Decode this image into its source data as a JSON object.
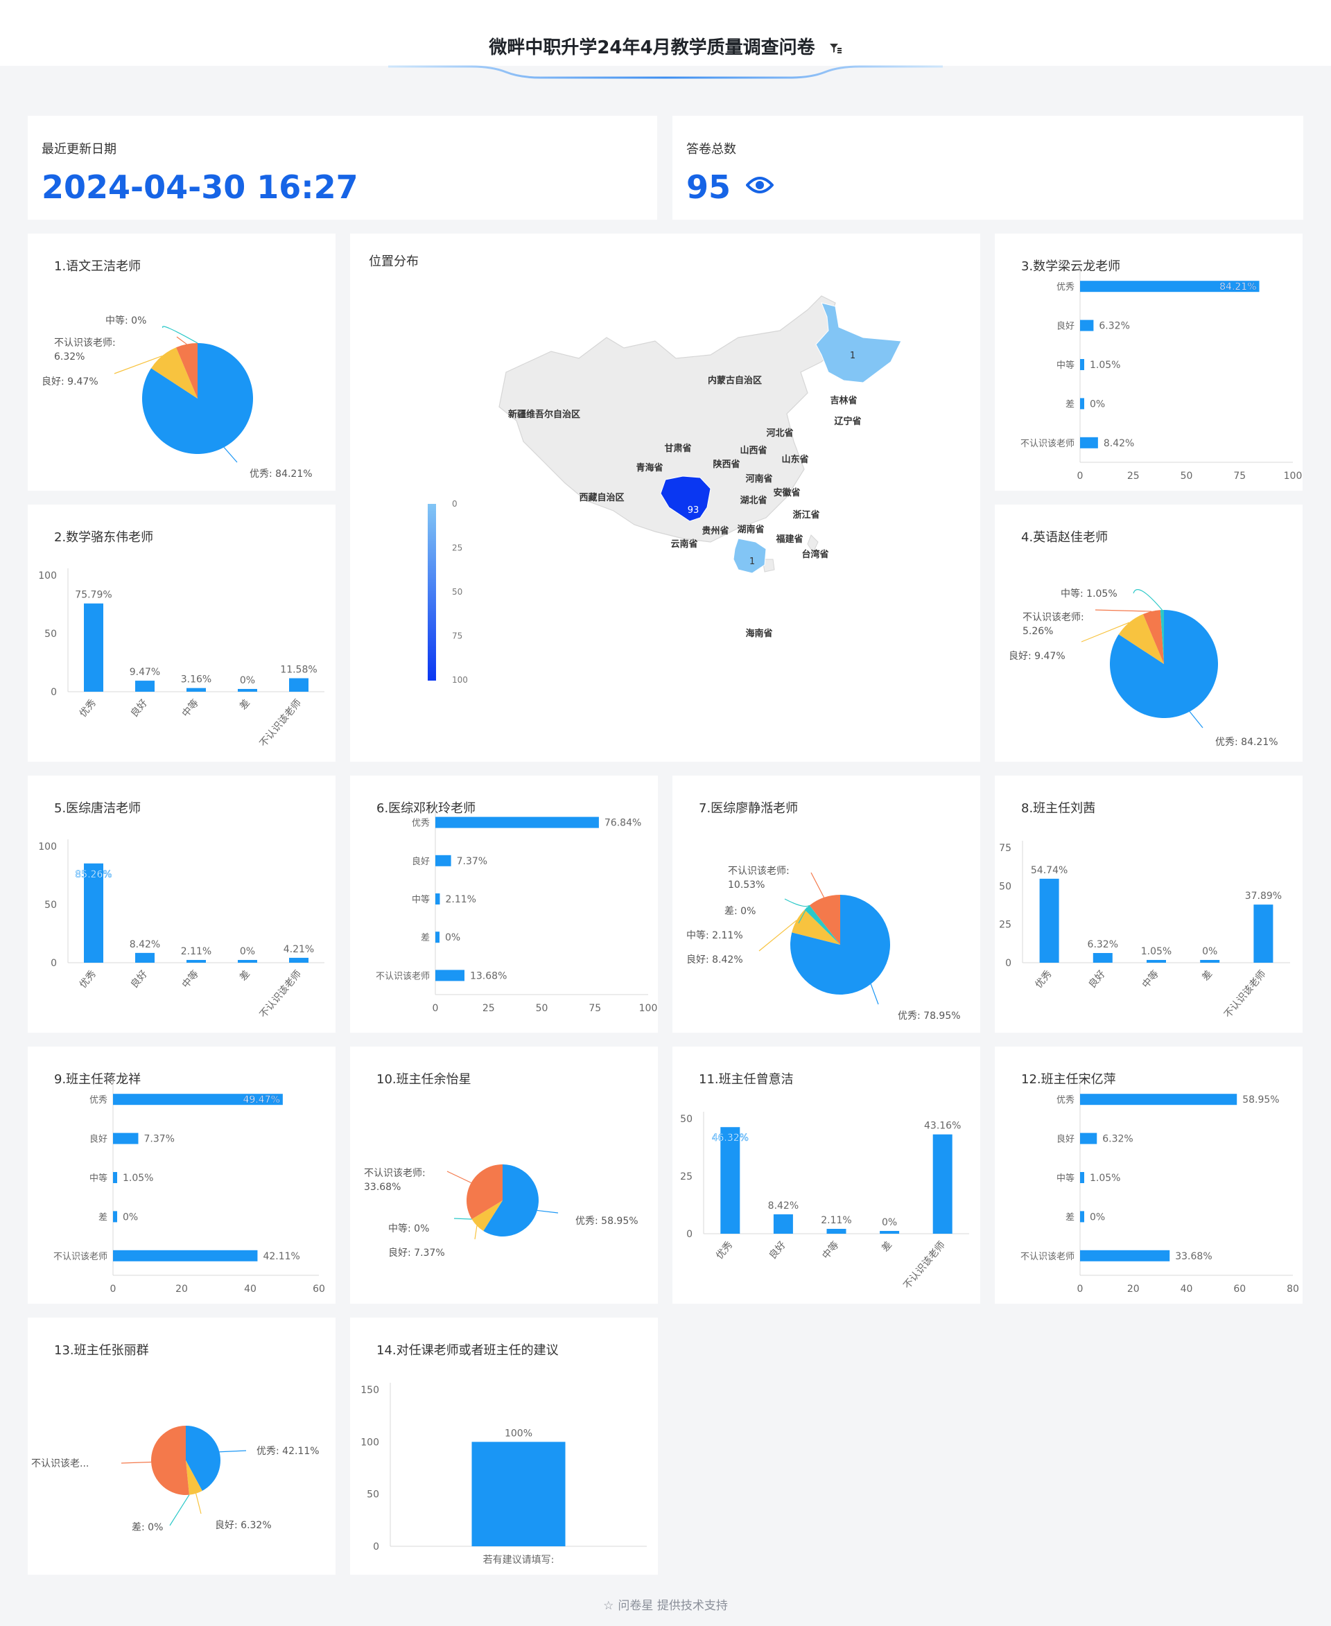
{
  "header": {
    "title": "微畔中职升学24年4月教学质量调查问卷",
    "filter_icon": "filter-icon"
  },
  "kpi": {
    "update_label": "最近更新日期",
    "update_value": "2024-04-30 16:27",
    "count_label": "答卷总数",
    "count_value": "95",
    "count_icon": "eye-icon"
  },
  "footer": {
    "text": "问卷星 提供技术支持",
    "icon": "star-icon"
  },
  "map": {
    "title": "位置分布",
    "legend_ticks": [
      "0",
      "25",
      "50",
      "75",
      "100"
    ],
    "provinces": [
      "内蒙古自治区",
      "新疆维吾尔自治区",
      "吉林省",
      "辽宁省",
      "河北省",
      "甘肃省",
      "山西省",
      "山东省",
      "青海省",
      "陕西省",
      "河南省",
      "西藏自治区",
      "安徽省",
      "湖北省",
      "浙江省",
      "贵州省",
      "湖南省",
      "云南省",
      "福建省",
      "台湾省",
      "海南省"
    ],
    "values": [
      {
        "region": "四川省",
        "value": 93
      },
      {
        "region": "黑龙江省",
        "value": 1
      },
      {
        "region": "广东省",
        "value": 1
      }
    ]
  },
  "colors": {
    "blue": "#1a96f5",
    "orange": "#f4794b",
    "yellow": "#f8c33f",
    "teal": "#2bc8c8",
    "map_high": "#0a37f2",
    "map_low": "#82c5f5",
    "map_base": "#ececec"
  },
  "chart_data": [
    {
      "id": "c1",
      "title": "1.语文王洁老师",
      "type": "pie",
      "slices": [
        {
          "label": "优秀: 84.21%",
          "value": 84.21,
          "color": "#1a96f5"
        },
        {
          "label": "良好: 9.47%",
          "value": 9.47,
          "color": "#f8c33f"
        },
        {
          "label": "不认识该老师: 6.32%",
          "value": 6.32,
          "color": "#f4794b"
        },
        {
          "label": "中等: 0%",
          "value": 0,
          "color": "#2bc8c8"
        }
      ]
    },
    {
      "id": "c2",
      "title": "2.数学骆东伟老师",
      "type": "bar",
      "categories": [
        "优秀",
        "良好",
        "中等",
        "差",
        "不认识该老师"
      ],
      "values": [
        75.79,
        9.47,
        3.16,
        0,
        11.58
      ],
      "labels": [
        "75.79%",
        "9.47%",
        "3.16%",
        "0%",
        "11.58%"
      ],
      "y_ticks": [
        "100",
        "50",
        "0"
      ],
      "ylim": [
        0,
        100
      ]
    },
    {
      "id": "c3",
      "title": "3.数学梁云龙老师",
      "type": "hbar",
      "categories": [
        "优秀",
        "良好",
        "中等",
        "差",
        "不认识该老师"
      ],
      "values": [
        84.21,
        6.32,
        1.05,
        0,
        8.42
      ],
      "labels": [
        "84.21%",
        "6.32%",
        "1.05%",
        "0%",
        "8.42%"
      ],
      "x_ticks": [
        "0",
        "25",
        "50",
        "75",
        "100"
      ],
      "xlim": [
        0,
        100
      ]
    },
    {
      "id": "c4",
      "title": "4.英语赵佳老师",
      "type": "pie",
      "slices": [
        {
          "label": "优秀: 84.21%",
          "value": 84.21,
          "color": "#1a96f5"
        },
        {
          "label": "良好: 9.47%",
          "value": 9.47,
          "color": "#f8c33f"
        },
        {
          "label": "不认识该老师: 5.26%",
          "value": 5.26,
          "color": "#f4794b"
        },
        {
          "label": "中等: 1.05%",
          "value": 1.05,
          "color": "#2bc8c8"
        }
      ]
    },
    {
      "id": "c5",
      "title": "5.医综唐洁老师",
      "type": "bar",
      "categories": [
        "优秀",
        "良好",
        "中等",
        "差",
        "不认识该老师"
      ],
      "values": [
        85.26,
        8.42,
        2.11,
        0,
        4.21
      ],
      "labels": [
        "85.26%",
        "8.42%",
        "2.11%",
        "0%",
        "4.21%"
      ],
      "y_ticks": [
        "100",
        "50",
        "0"
      ],
      "ylim": [
        0,
        100
      ]
    },
    {
      "id": "c6",
      "title": "6.医综邓秋玲老师",
      "type": "hbar",
      "categories": [
        "优秀",
        "良好",
        "中等",
        "差",
        "不认识该老师"
      ],
      "values": [
        76.84,
        7.37,
        2.11,
        0,
        13.68
      ],
      "labels": [
        "76.84%",
        "7.37%",
        "2.11%",
        "0%",
        "13.68%"
      ],
      "x_ticks": [
        "0",
        "25",
        "50",
        "75",
        "100"
      ],
      "xlim": [
        0,
        100
      ]
    },
    {
      "id": "c7",
      "title": "7.医综廖静湉老师",
      "type": "pie",
      "slices": [
        {
          "label": "优秀: 78.95%",
          "value": 78.95,
          "color": "#1a96f5"
        },
        {
          "label": "良好: 8.42%",
          "value": 8.42,
          "color": "#f8c33f"
        },
        {
          "label": "中等: 2.11%",
          "value": 2.11,
          "color": "#2bc8c8"
        },
        {
          "label": "差: 0%",
          "value": 0,
          "color": "#2bc8c8"
        },
        {
          "label": "不认识该老师: 10.53%",
          "value": 10.53,
          "color": "#f4794b"
        }
      ]
    },
    {
      "id": "c8",
      "title": "8.班主任刘茜",
      "type": "bar",
      "categories": [
        "优秀",
        "良好",
        "中等",
        "差",
        "不认识该老师"
      ],
      "values": [
        54.74,
        6.32,
        1.05,
        0,
        37.89
      ],
      "labels": [
        "54.74%",
        "6.32%",
        "1.05%",
        "0%",
        "37.89%"
      ],
      "y_ticks": [
        "75",
        "50",
        "25",
        "0"
      ],
      "ylim": [
        0,
        75
      ]
    },
    {
      "id": "c9",
      "title": "9.班主任蒋龙祥",
      "type": "hbar",
      "categories": [
        "优秀",
        "良好",
        "中等",
        "差",
        "不认识该老师"
      ],
      "values": [
        49.47,
        7.37,
        1.05,
        0,
        42.11
      ],
      "labels": [
        "49.47%",
        "7.37%",
        "1.05%",
        "0%",
        "42.11%"
      ],
      "x_ticks": [
        "0",
        "20",
        "40",
        "60"
      ],
      "xlim": [
        0,
        60
      ]
    },
    {
      "id": "c10",
      "title": "10.班主任余怡星",
      "type": "pie",
      "slices": [
        {
          "label": "优秀: 58.95%",
          "value": 58.95,
          "color": "#1a96f5"
        },
        {
          "label": "良好: 7.37%",
          "value": 7.37,
          "color": "#f8c33f"
        },
        {
          "label": "中等: 0%",
          "value": 0,
          "color": "#2bc8c8"
        },
        {
          "label": "不认识该老师: 33.68%",
          "value": 33.68,
          "color": "#f4794b"
        }
      ]
    },
    {
      "id": "c11",
      "title": "11.班主任曾意洁",
      "type": "bar",
      "categories": [
        "优秀",
        "良好",
        "中等",
        "差",
        "不认识该老师"
      ],
      "values": [
        46.32,
        8.42,
        2.11,
        0,
        43.16
      ],
      "labels": [
        "46.32%",
        "8.42%",
        "2.11%",
        "0%",
        "43.16%"
      ],
      "y_ticks": [
        "50",
        "25",
        "0"
      ],
      "ylim": [
        0,
        50
      ]
    },
    {
      "id": "c12",
      "title": "12.班主任宋亿萍",
      "type": "hbar",
      "categories": [
        "优秀",
        "良好",
        "中等",
        "差",
        "不认识该老师"
      ],
      "values": [
        58.95,
        6.32,
        1.05,
        0,
        33.68
      ],
      "labels": [
        "58.95%",
        "6.32%",
        "1.05%",
        "0%",
        "33.68%"
      ],
      "x_ticks": [
        "0",
        "20",
        "40",
        "60",
        "80"
      ],
      "xlim": [
        0,
        80
      ]
    },
    {
      "id": "c13",
      "title": "13.班主任张丽群",
      "type": "pie",
      "slices": [
        {
          "label": "优秀: 42.11%",
          "value": 42.11,
          "color": "#1a96f5"
        },
        {
          "label": "良好: 6.32%",
          "value": 6.32,
          "color": "#f8c33f"
        },
        {
          "label": "差: 0%",
          "value": 0,
          "color": "#2bc8c8"
        },
        {
          "label": "不认识该老...",
          "value": 51.57,
          "color": "#f4794b"
        }
      ]
    },
    {
      "id": "c14",
      "title": "14.对任课老师或者班主任的建议",
      "type": "bar",
      "categories": [
        "若有建议请填写:"
      ],
      "values": [
        100
      ],
      "labels": [
        "100%"
      ],
      "y_ticks": [
        "150",
        "100",
        "50",
        "0"
      ],
      "ylim": [
        0,
        150
      ]
    }
  ]
}
